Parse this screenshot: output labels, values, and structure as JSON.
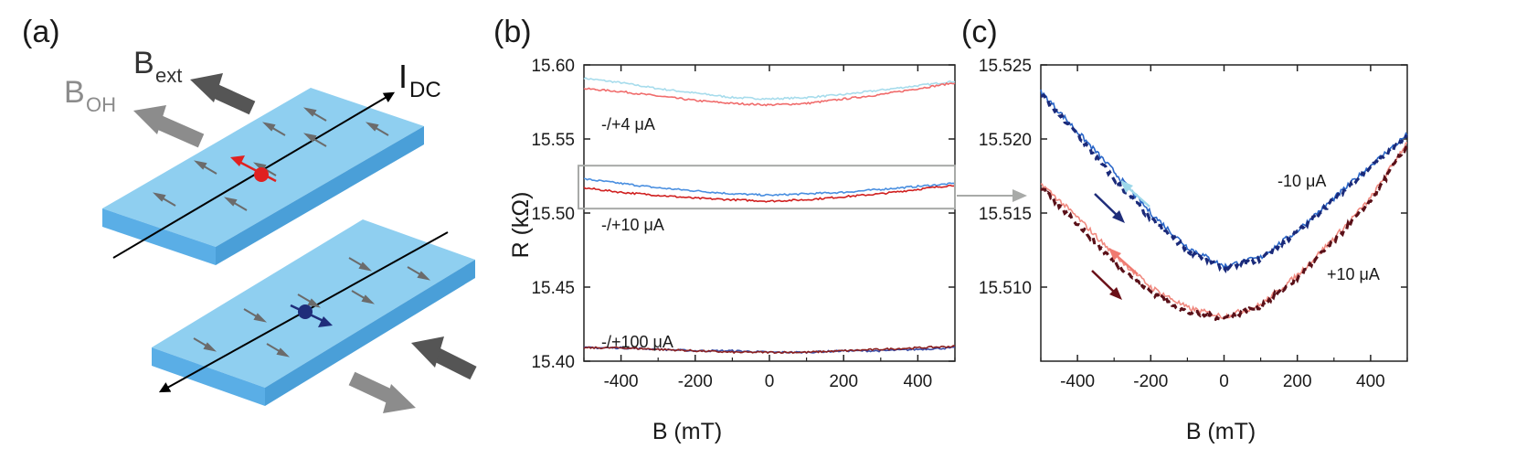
{
  "colors": {
    "block_top": "#8fcff0",
    "block_front": "#5aaee6",
    "block_side": "#4a9fd8",
    "spin_small": "#6b6b6b",
    "spin_up": "#e02020",
    "spin_down": "#1f2d7a",
    "b_ext_arrow": "#555555",
    "b_oh_arrow": "#8c8c8c",
    "gray_box": "#a8aaa8",
    "neg4": "#a7dcec",
    "pos4": "#f06c6c",
    "neg10": "#4a8fe0",
    "pos10": "#d02020",
    "neg100": "#3a4ea8",
    "pos100": "#8b2020",
    "c_neg_solid": "#2a66c8",
    "c_neg_dash": "#1a2a7a",
    "c_pos_solid": "#f08a80",
    "c_pos_dash": "#5a1018",
    "c_arrow_light_blue": "#9ed8ea",
    "c_arrow_dark_blue": "#1f2d7a",
    "c_arrow_light_red": "#f07a70",
    "c_arrow_dark_red": "#6a1018"
  },
  "panel_a": {
    "label": "(a)",
    "b_ext": {
      "main": "B",
      "sub": "ext"
    },
    "b_oh": {
      "main": "B",
      "sub": "OH"
    },
    "i_dc": {
      "main": "I",
      "sub": "DC"
    }
  },
  "chart_data": [
    {
      "type": "line",
      "panel_label": "(b)",
      "xlabel": "B (mT)",
      "ylabel": "R (kΩ)",
      "xlim": [
        -500,
        500
      ],
      "ylim": [
        15.4,
        15.6
      ],
      "xticks": [
        -400,
        -200,
        0,
        200,
        400
      ],
      "yticks": [
        15.4,
        15.45,
        15.5,
        15.55,
        15.6
      ],
      "ytick_labels": [
        "15.40",
        "15.45",
        "15.50",
        "15.55",
        "15.60"
      ],
      "x": [
        -500,
        -400,
        -300,
        -200,
        -100,
        0,
        100,
        200,
        300,
        400,
        500
      ],
      "series": [
        {
          "name": "-4 μA",
          "color_key": "neg4",
          "values": [
            15.591,
            15.588,
            15.584,
            15.581,
            15.578,
            15.577,
            15.578,
            15.58,
            15.583,
            15.586,
            15.589
          ]
        },
        {
          "name": "+4 μA",
          "color_key": "pos4",
          "values": [
            15.584,
            15.582,
            15.579,
            15.576,
            15.574,
            15.573,
            15.574,
            15.577,
            15.58,
            15.584,
            15.588
          ]
        },
        {
          "name": "-10 μA",
          "color_key": "neg10",
          "values": [
            15.523,
            15.52,
            15.517,
            15.515,
            15.513,
            15.512,
            15.513,
            15.514,
            15.516,
            15.518,
            15.52
          ]
        },
        {
          "name": "+10 μA",
          "color_key": "pos10",
          "values": [
            15.517,
            15.514,
            15.512,
            15.51,
            15.509,
            15.508,
            15.509,
            15.511,
            15.513,
            15.516,
            15.519
          ]
        },
        {
          "name": "-100 μA",
          "color_key": "neg100",
          "values": [
            15.409,
            15.409,
            15.408,
            15.407,
            15.407,
            15.406,
            15.406,
            15.407,
            15.407,
            15.408,
            15.409
          ]
        },
        {
          "name": "+100 μA",
          "color_key": "pos100",
          "values": [
            15.409,
            15.409,
            15.408,
            15.407,
            15.406,
            15.406,
            15.406,
            15.407,
            15.408,
            15.409,
            15.41
          ]
        }
      ],
      "highlight_box": {
        "x": [
          -500,
          500
        ],
        "y": [
          15.503,
          15.532
        ]
      },
      "annotations": [
        "-/+4 μA",
        "-/+10 μA",
        "-/+100 μA"
      ]
    },
    {
      "type": "line",
      "panel_label": "(c)",
      "xlabel": "B (mT)",
      "ylabel": "",
      "xlim": [
        -500,
        500
      ],
      "ylim": [
        15.505,
        15.525
      ],
      "xticks": [
        -400,
        -200,
        0,
        200,
        400
      ],
      "yticks": [
        15.51,
        15.515,
        15.52,
        15.525
      ],
      "ytick_labels": [
        "15.510",
        "15.515",
        "15.520",
        "15.525"
      ],
      "x": [
        -500,
        -400,
        -300,
        -200,
        -100,
        0,
        100,
        200,
        300,
        400,
        500
      ],
      "series": [
        {
          "name": "-10 μA sweep up",
          "color_key": "c_neg_solid",
          "style": "solid",
          "values": [
            15.5232,
            15.5205,
            15.5178,
            15.515,
            15.5127,
            15.5114,
            15.512,
            15.5138,
            15.516,
            15.5182,
            15.5203
          ]
        },
        {
          "name": "-10 μA sweep down",
          "color_key": "c_neg_dash",
          "style": "dashed",
          "values": [
            15.523,
            15.5203,
            15.5173,
            15.5146,
            15.5125,
            15.5113,
            15.5119,
            15.5137,
            15.5159,
            15.5181,
            15.5201
          ]
        },
        {
          "name": "+10 μA sweep up",
          "color_key": "c_pos_solid",
          "style": "solid",
          "values": [
            15.517,
            15.5147,
            15.5122,
            15.51,
            15.5086,
            15.508,
            15.5088,
            15.5108,
            15.5133,
            15.516,
            15.5198
          ]
        },
        {
          "name": "+10 μA sweep down",
          "color_key": "c_pos_dash",
          "style": "dashed",
          "values": [
            15.5167,
            15.5143,
            15.5117,
            15.5097,
            15.5083,
            15.5079,
            15.5087,
            15.5106,
            15.5131,
            15.5158,
            15.5196
          ]
        }
      ],
      "annotations": [
        "-10 μA",
        "+10 μA"
      ]
    }
  ]
}
